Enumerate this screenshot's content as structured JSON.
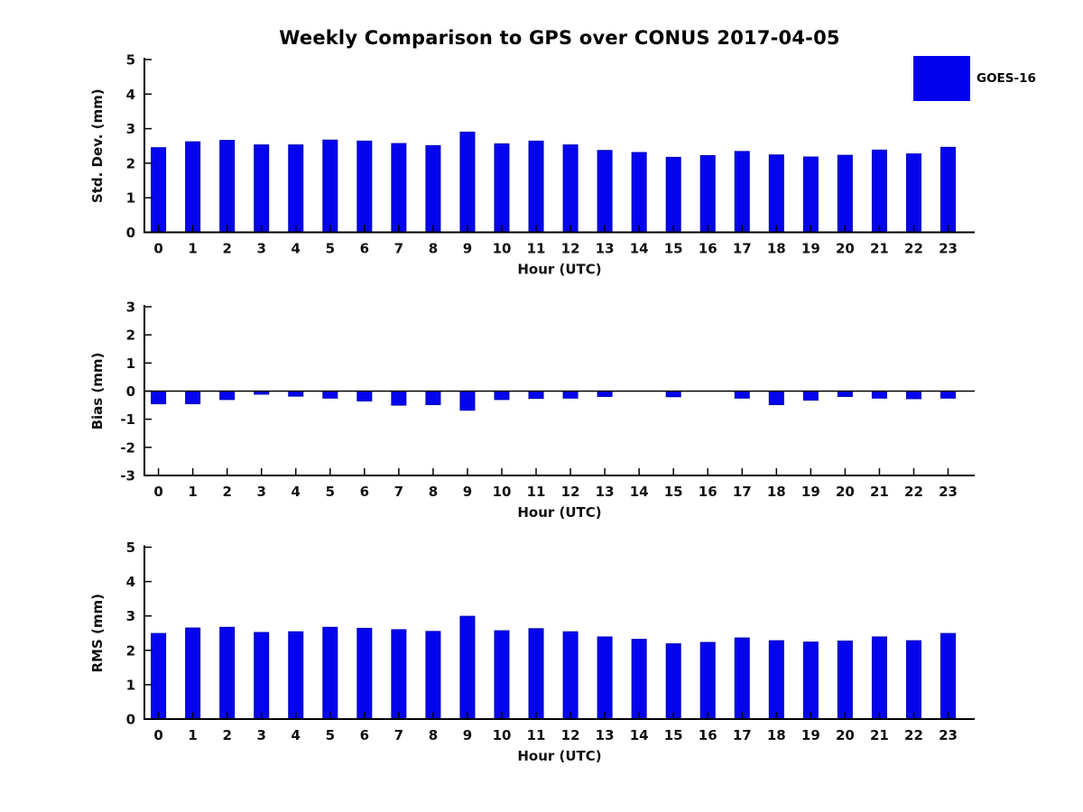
{
  "title": "Weekly Comparison to GPS over CONUS 2017-04-05",
  "legend": {
    "label": "GOES-16",
    "color": "#0202ee"
  },
  "colors": {
    "bar_fill": "#0404ee",
    "bar_edge": "#0000b8",
    "axis": "#000000"
  },
  "chart_data": [
    {
      "type": "bar",
      "name": "std-dev-by-hour",
      "xlabel": "Hour (UTC)",
      "ylabel": "Std. Dev. (mm)",
      "ylim": [
        0,
        5
      ],
      "yticks": [
        0,
        1,
        2,
        3,
        4,
        5
      ],
      "grid": false,
      "legend_position": "top-right",
      "series_name": "GOES-16",
      "categories": [
        "0",
        "1",
        "2",
        "3",
        "4",
        "5",
        "6",
        "7",
        "8",
        "9",
        "10",
        "11",
        "12",
        "13",
        "14",
        "15",
        "16",
        "17",
        "18",
        "19",
        "20",
        "21",
        "22",
        "23"
      ],
      "values": [
        2.45,
        2.62,
        2.66,
        2.53,
        2.53,
        2.67,
        2.64,
        2.57,
        2.51,
        2.9,
        2.56,
        2.64,
        2.53,
        2.37,
        2.31,
        2.17,
        2.22,
        2.34,
        2.24,
        2.18,
        2.23,
        2.38,
        2.27,
        2.46
      ]
    },
    {
      "type": "bar",
      "name": "bias-by-hour",
      "xlabel": "Hour (UTC)",
      "ylabel": "Bias (mm)",
      "ylim": [
        -3,
        3
      ],
      "yticks": [
        -3,
        -2,
        -1,
        0,
        1,
        2,
        3
      ],
      "zero_line": true,
      "grid": false,
      "series_name": "GOES-16",
      "categories": [
        "0",
        "1",
        "2",
        "3",
        "4",
        "5",
        "6",
        "7",
        "8",
        "9",
        "10",
        "11",
        "12",
        "13",
        "14",
        "15",
        "16",
        "17",
        "18",
        "19",
        "20",
        "21",
        "22",
        "23"
      ],
      "values": [
        -0.45,
        -0.45,
        -0.3,
        -0.11,
        -0.18,
        -0.25,
        -0.35,
        -0.5,
        -0.48,
        -0.68,
        -0.3,
        -0.26,
        -0.25,
        -0.19,
        0.0,
        -0.2,
        0.0,
        -0.25,
        -0.48,
        -0.32,
        -0.19,
        -0.25,
        -0.27,
        -0.25
      ]
    },
    {
      "type": "bar",
      "name": "rms-by-hour",
      "xlabel": "Hour (UTC)",
      "ylabel": "RMS (mm)",
      "ylim": [
        0,
        5
      ],
      "yticks": [
        0,
        1,
        2,
        3,
        4,
        5
      ],
      "grid": false,
      "series_name": "GOES-16",
      "categories": [
        "0",
        "1",
        "2",
        "3",
        "4",
        "5",
        "6",
        "7",
        "8",
        "9",
        "10",
        "11",
        "12",
        "13",
        "14",
        "15",
        "16",
        "17",
        "18",
        "19",
        "20",
        "21",
        "22",
        "23"
      ],
      "values": [
        2.49,
        2.65,
        2.67,
        2.52,
        2.54,
        2.67,
        2.64,
        2.6,
        2.55,
        2.99,
        2.57,
        2.63,
        2.54,
        2.39,
        2.32,
        2.19,
        2.23,
        2.36,
        2.28,
        2.24,
        2.27,
        2.39,
        2.28,
        2.49
      ]
    }
  ]
}
